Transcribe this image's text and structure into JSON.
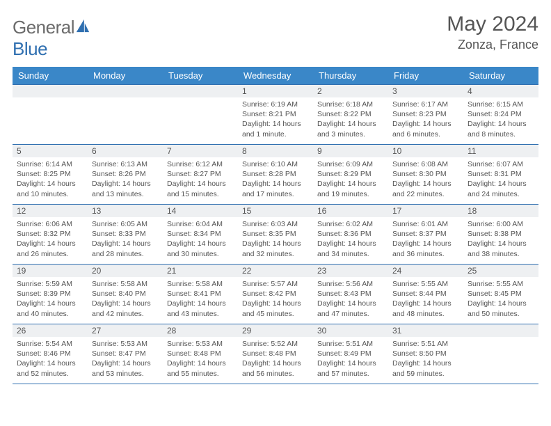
{
  "brand": {
    "part1": "General",
    "part2": "Blue"
  },
  "title": "May 2024",
  "location": "Zonza, France",
  "colors": {
    "header_bg": "#3a87c8",
    "border": "#2f6fb0",
    "daynum_bg": "#eef0f2",
    "text": "#555555",
    "page_bg": "#ffffff"
  },
  "weekdays": [
    "Sunday",
    "Monday",
    "Tuesday",
    "Wednesday",
    "Thursday",
    "Friday",
    "Saturday"
  ],
  "weeks": [
    [
      null,
      null,
      null,
      {
        "n": "1",
        "sr": "6:19 AM",
        "ss": "8:21 PM",
        "dl": "14 hours and 1 minute."
      },
      {
        "n": "2",
        "sr": "6:18 AM",
        "ss": "8:22 PM",
        "dl": "14 hours and 3 minutes."
      },
      {
        "n": "3",
        "sr": "6:17 AM",
        "ss": "8:23 PM",
        "dl": "14 hours and 6 minutes."
      },
      {
        "n": "4",
        "sr": "6:15 AM",
        "ss": "8:24 PM",
        "dl": "14 hours and 8 minutes."
      }
    ],
    [
      {
        "n": "5",
        "sr": "6:14 AM",
        "ss": "8:25 PM",
        "dl": "14 hours and 10 minutes."
      },
      {
        "n": "6",
        "sr": "6:13 AM",
        "ss": "8:26 PM",
        "dl": "14 hours and 13 minutes."
      },
      {
        "n": "7",
        "sr": "6:12 AM",
        "ss": "8:27 PM",
        "dl": "14 hours and 15 minutes."
      },
      {
        "n": "8",
        "sr": "6:10 AM",
        "ss": "8:28 PM",
        "dl": "14 hours and 17 minutes."
      },
      {
        "n": "9",
        "sr": "6:09 AM",
        "ss": "8:29 PM",
        "dl": "14 hours and 19 minutes."
      },
      {
        "n": "10",
        "sr": "6:08 AM",
        "ss": "8:30 PM",
        "dl": "14 hours and 22 minutes."
      },
      {
        "n": "11",
        "sr": "6:07 AM",
        "ss": "8:31 PM",
        "dl": "14 hours and 24 minutes."
      }
    ],
    [
      {
        "n": "12",
        "sr": "6:06 AM",
        "ss": "8:32 PM",
        "dl": "14 hours and 26 minutes."
      },
      {
        "n": "13",
        "sr": "6:05 AM",
        "ss": "8:33 PM",
        "dl": "14 hours and 28 minutes."
      },
      {
        "n": "14",
        "sr": "6:04 AM",
        "ss": "8:34 PM",
        "dl": "14 hours and 30 minutes."
      },
      {
        "n": "15",
        "sr": "6:03 AM",
        "ss": "8:35 PM",
        "dl": "14 hours and 32 minutes."
      },
      {
        "n": "16",
        "sr": "6:02 AM",
        "ss": "8:36 PM",
        "dl": "14 hours and 34 minutes."
      },
      {
        "n": "17",
        "sr": "6:01 AM",
        "ss": "8:37 PM",
        "dl": "14 hours and 36 minutes."
      },
      {
        "n": "18",
        "sr": "6:00 AM",
        "ss": "8:38 PM",
        "dl": "14 hours and 38 minutes."
      }
    ],
    [
      {
        "n": "19",
        "sr": "5:59 AM",
        "ss": "8:39 PM",
        "dl": "14 hours and 40 minutes."
      },
      {
        "n": "20",
        "sr": "5:58 AM",
        "ss": "8:40 PM",
        "dl": "14 hours and 42 minutes."
      },
      {
        "n": "21",
        "sr": "5:58 AM",
        "ss": "8:41 PM",
        "dl": "14 hours and 43 minutes."
      },
      {
        "n": "22",
        "sr": "5:57 AM",
        "ss": "8:42 PM",
        "dl": "14 hours and 45 minutes."
      },
      {
        "n": "23",
        "sr": "5:56 AM",
        "ss": "8:43 PM",
        "dl": "14 hours and 47 minutes."
      },
      {
        "n": "24",
        "sr": "5:55 AM",
        "ss": "8:44 PM",
        "dl": "14 hours and 48 minutes."
      },
      {
        "n": "25",
        "sr": "5:55 AM",
        "ss": "8:45 PM",
        "dl": "14 hours and 50 minutes."
      }
    ],
    [
      {
        "n": "26",
        "sr": "5:54 AM",
        "ss": "8:46 PM",
        "dl": "14 hours and 52 minutes."
      },
      {
        "n": "27",
        "sr": "5:53 AM",
        "ss": "8:47 PM",
        "dl": "14 hours and 53 minutes."
      },
      {
        "n": "28",
        "sr": "5:53 AM",
        "ss": "8:48 PM",
        "dl": "14 hours and 55 minutes."
      },
      {
        "n": "29",
        "sr": "5:52 AM",
        "ss": "8:48 PM",
        "dl": "14 hours and 56 minutes."
      },
      {
        "n": "30",
        "sr": "5:51 AM",
        "ss": "8:49 PM",
        "dl": "14 hours and 57 minutes."
      },
      {
        "n": "31",
        "sr": "5:51 AM",
        "ss": "8:50 PM",
        "dl": "14 hours and 59 minutes."
      },
      null
    ]
  ],
  "labels": {
    "sunrise": "Sunrise: ",
    "sunset": "Sunset: ",
    "daylight": "Daylight: "
  }
}
